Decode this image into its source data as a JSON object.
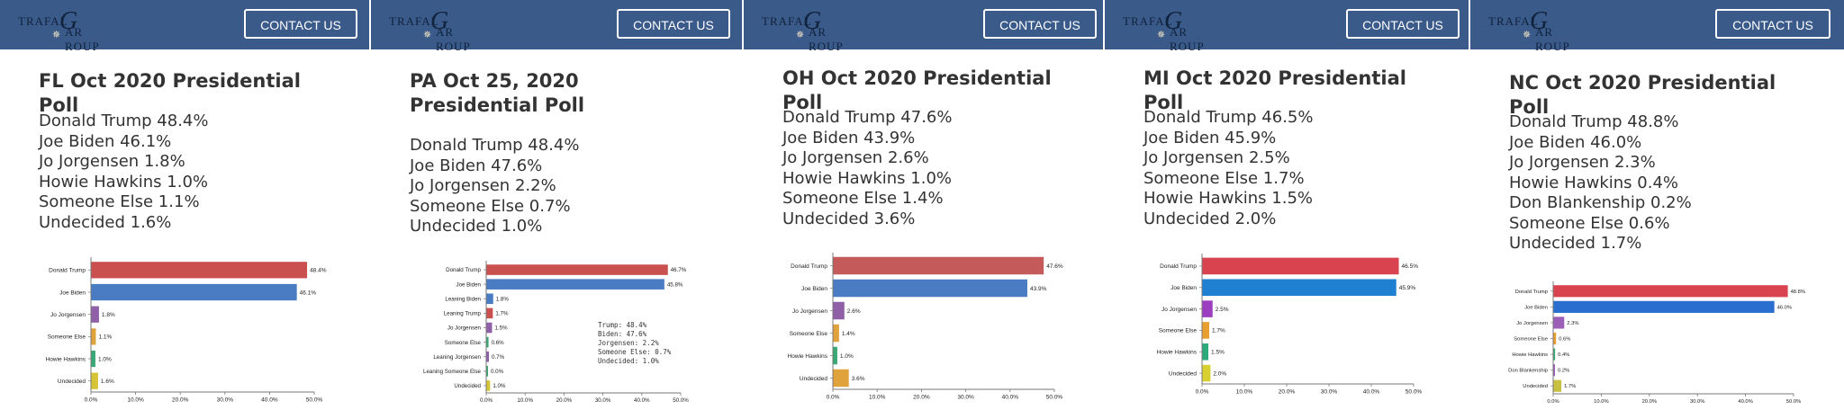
{
  "header": {
    "logo_text_top": "TRAFAL",
    "logo_letter": "G",
    "logo_text_bottom": "AR ROUP",
    "contact_label": "CONTACT US"
  },
  "panels": [
    {
      "title": "FL Oct 2020 Presidential Poll",
      "results": [
        "Donald Trump 48.4%",
        "Joe Biden 46.1%",
        "Jo Jorgensen 1.8%",
        "Howie Hawkins 1.0%",
        "Someone Else 1.1%",
        "Undecided 1.6%"
      ]
    },
    {
      "title": "PA Oct 25, 2020 Presidential Poll",
      "results": [
        "Donald Trump 48.4%",
        "Joe Biden 47.6%",
        "Jo Jorgensen 2.2%",
        "Someone Else 0.7%",
        "Undecided 1.0%"
      ]
    },
    {
      "title": "OH Oct 2020 Presidential Poll",
      "results": [
        "Donald Trump 47.6%",
        "Joe Biden 43.9%",
        "Jo Jorgensen 2.6%",
        "Howie Hawkins 1.0%",
        "Someone Else 1.4%",
        "Undecided 3.6%"
      ]
    },
    {
      "title": "MI Oct 2020 Presidential Poll",
      "results": [
        "Donald Trump 46.5%",
        "Joe Biden 45.9%",
        "Jo Jorgensen 2.5%",
        "Someone Else 1.7%",
        "Howie Hawkins 1.5%",
        "Undecided 2.0%"
      ]
    },
    {
      "title": "NC Oct 2020 Presidential Poll",
      "results": [
        "Donald Trump 48.8%",
        "Joe Biden 46.0%",
        "Jo Jorgensen 2.3%",
        "Howie Hawkins 0.4%",
        "Don Blankenship 0.2%",
        "Someone Else 0.6%",
        "Undecided 1.7%"
      ]
    }
  ],
  "chart_data": [
    {
      "type": "bar",
      "orientation": "horizontal",
      "categories": [
        "Donald Trump",
        "Joe Biden",
        "Jo Jorgensen",
        "Someone Else",
        "Howie Hawkins",
        "Undecided"
      ],
      "values": [
        48.4,
        46.1,
        1.8,
        1.1,
        1.0,
        1.6
      ],
      "value_labels": [
        "48.4%",
        "46.1%",
        "1.8%",
        "1.1%",
        "1.0%",
        "1.6%"
      ],
      "colors": [
        "#c9504f",
        "#4a7cc4",
        "#8f5fa8",
        "#e0a23a",
        "#3aa876",
        "#d6c437"
      ],
      "xlim": [
        0,
        50
      ],
      "xticks": [
        "0.0%",
        "10.0%",
        "20.0%",
        "30.0%",
        "40.0%",
        "50.0%"
      ],
      "grid": false
    },
    {
      "type": "bar",
      "orientation": "horizontal",
      "categories": [
        "Donald Trump",
        "Joe Biden",
        "Leaning Biden",
        "Leaning Trump",
        "Jo Jorgensen",
        "Someone Else",
        "Leaning Jorgensen",
        "Leaning Someone Else",
        "Undecided"
      ],
      "values": [
        46.7,
        45.8,
        1.8,
        1.7,
        1.5,
        0.6,
        0.7,
        0.0,
        1.0
      ],
      "value_labels": [
        "46.7%",
        "45.8%",
        "1.8%",
        "1.7%",
        "1.5%",
        "0.6%",
        "0.7%",
        "0.0%",
        "1.0%"
      ],
      "colors": [
        "#c9504f",
        "#4a7cc4",
        "#4a7cc4",
        "#c9504f",
        "#8f5fa8",
        "#3aa876",
        "#8f5fa8",
        "#3aa876",
        "#d6c437"
      ],
      "xlim": [
        0,
        50
      ],
      "xticks": [
        "0.0%",
        "10.0%",
        "20.0%",
        "30.0%",
        "40.0%",
        "50.0%"
      ],
      "annotation": [
        "Trump: 48.4%",
        "Biden: 47.6%",
        "Jorgensen: 2.2%",
        "Someone Else: 0.7%",
        "Undecided: 1.0%"
      ],
      "grid": false
    },
    {
      "type": "bar",
      "orientation": "horizontal",
      "categories": [
        "Donald Trump",
        "Joe Biden",
        "Jo Jorgensen",
        "Someone Else",
        "Howie Hawkins",
        "Undecided"
      ],
      "values": [
        47.6,
        43.9,
        2.6,
        1.4,
        1.0,
        3.6
      ],
      "value_labels": [
        "47.6%",
        "43.9%",
        "2.6%",
        "1.4%",
        "1.0%",
        "3.6%"
      ],
      "colors": [
        "#c55a5a",
        "#4a7cc4",
        "#8f5fa8",
        "#e0a23a",
        "#3aa876",
        "#e0a23a"
      ],
      "xlim": [
        0,
        50
      ],
      "xticks": [
        "0.0%",
        "10.0%",
        "20.0%",
        "30.0%",
        "40.0%",
        "50.0%"
      ],
      "grid": false
    },
    {
      "type": "bar",
      "orientation": "horizontal",
      "categories": [
        "Donald Trump",
        "Joe Biden",
        "Jo Jorgensen",
        "Someone Else",
        "Howie Hawkins",
        "Undecided"
      ],
      "values": [
        46.5,
        45.9,
        2.5,
        1.7,
        1.5,
        2.0
      ],
      "value_labels": [
        "46.5%",
        "45.9%",
        "2.5%",
        "1.7%",
        "1.5%",
        "2.0%"
      ],
      "colors": [
        "#d8434f",
        "#1f7fd0",
        "#9b3fc0",
        "#e8a030",
        "#2aab79",
        "#d8d030"
      ],
      "xlim": [
        0,
        50
      ],
      "xticks": [
        "0.0%",
        "10.0%",
        "20.0%",
        "30.0%",
        "40.0%",
        "50.0%"
      ],
      "grid": false
    },
    {
      "type": "bar",
      "orientation": "horizontal",
      "categories": [
        "Donald Trump",
        "Joe Biden",
        "Jo Jorgensen",
        "Someone Else",
        "Howie Hawkins",
        "Don Blankenship",
        "Undecided"
      ],
      "values": [
        48.8,
        46.0,
        2.3,
        0.6,
        0.4,
        0.2,
        1.7
      ],
      "value_labels": [
        "48.8%",
        "46.0%",
        "2.3%",
        "0.6%",
        "0.4%",
        "0.2%",
        "1.7%"
      ],
      "colors": [
        "#d8434f",
        "#2a6fd0",
        "#9b5fb8",
        "#e8a030",
        "#3aa876",
        "#9b5fb8",
        "#c8c040"
      ],
      "xlim": [
        0,
        50
      ],
      "xticks": [
        "0.0%",
        "10.0%",
        "20.0%",
        "30.0%",
        "40.0%",
        "50.0%"
      ],
      "grid": false
    }
  ]
}
